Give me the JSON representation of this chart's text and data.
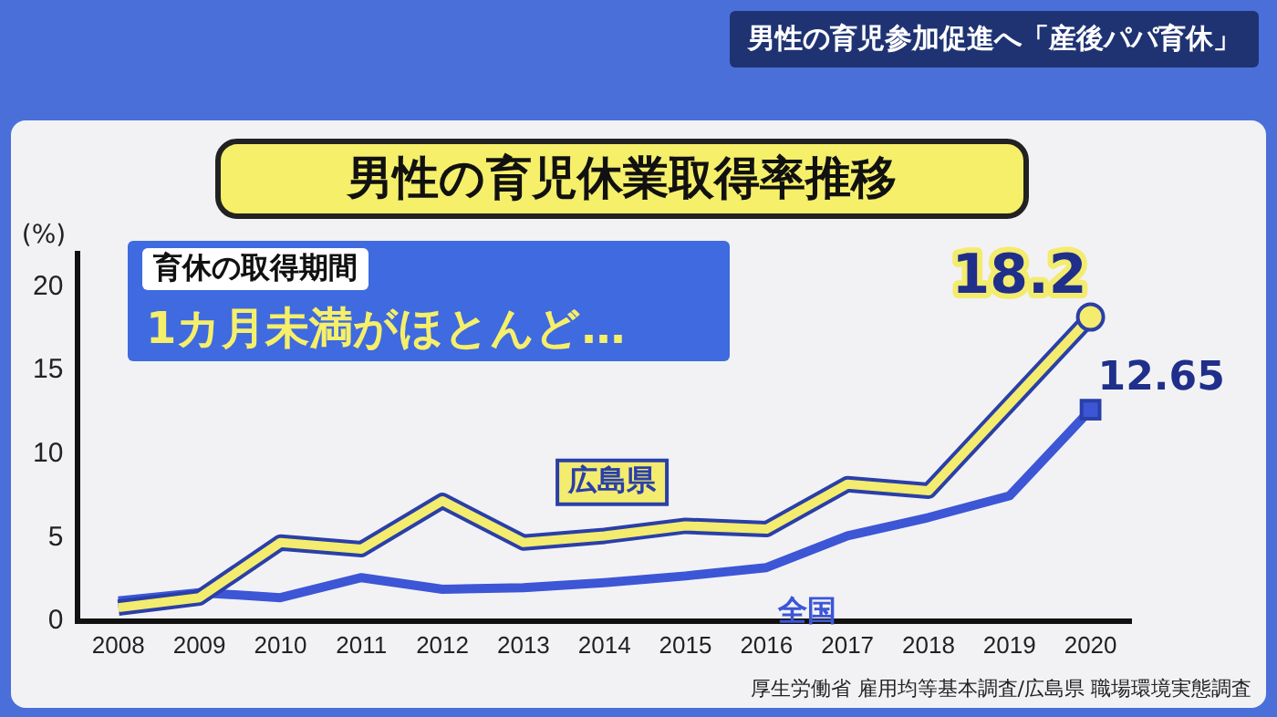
{
  "chart_data": {
    "type": "line",
    "title": "男性の育児休業取得率推移",
    "ylabel": "(%)",
    "categories": [
      "2008",
      "2009",
      "2010",
      "2011",
      "2012",
      "2013",
      "2014",
      "2015",
      "2016",
      "2017",
      "2018",
      "2019",
      "2020"
    ],
    "series": [
      {
        "name": "広島県",
        "color": "#f3ec6e",
        "values": [
          0.8,
          1.4,
          4.7,
          4.3,
          7.2,
          4.7,
          5.1,
          5.7,
          5.5,
          8.2,
          7.8,
          13.0,
          18.2
        ],
        "value_labels": [
          null,
          null,
          null,
          null,
          null,
          null,
          null,
          null,
          null,
          null,
          null,
          null,
          "18.2"
        ]
      },
      {
        "name": "全国",
        "color": "#3c56d6",
        "values": [
          1.2,
          1.7,
          1.4,
          2.6,
          1.9,
          2.0,
          2.3,
          2.7,
          3.2,
          5.1,
          6.2,
          7.5,
          12.65
        ],
        "value_labels": [
          null,
          null,
          null,
          null,
          null,
          null,
          null,
          null,
          null,
          null,
          null,
          null,
          "12.65"
        ]
      }
    ],
    "ylim": [
      0,
      22
    ],
    "yticks": [
      0,
      5,
      10,
      15,
      20
    ],
    "grid": false,
    "annotations": [
      "男性の育児参加促進へ「産後パパ育休」",
      "育休の取得期間",
      "1カ月未満がほとんど…",
      "厚生労働省 雇用均等基本調査/広島県 職場環境実態調査"
    ]
  }
}
